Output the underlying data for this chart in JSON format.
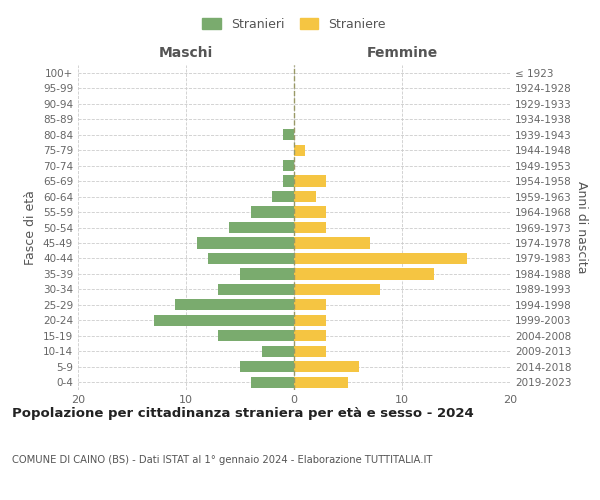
{
  "age_groups": [
    "0-4",
    "5-9",
    "10-14",
    "15-19",
    "20-24",
    "25-29",
    "30-34",
    "35-39",
    "40-44",
    "45-49",
    "50-54",
    "55-59",
    "60-64",
    "65-69",
    "70-74",
    "75-79",
    "80-84",
    "85-89",
    "90-94",
    "95-99",
    "100+"
  ],
  "birth_years": [
    "2019-2023",
    "2014-2018",
    "2009-2013",
    "2004-2008",
    "1999-2003",
    "1994-1998",
    "1989-1993",
    "1984-1988",
    "1979-1983",
    "1974-1978",
    "1969-1973",
    "1964-1968",
    "1959-1963",
    "1954-1958",
    "1949-1953",
    "1944-1948",
    "1939-1943",
    "1934-1938",
    "1929-1933",
    "1924-1928",
    "≤ 1923"
  ],
  "males": [
    4,
    5,
    3,
    7,
    13,
    11,
    7,
    5,
    8,
    9,
    6,
    4,
    2,
    1,
    1,
    0,
    1,
    0,
    0,
    0,
    0
  ],
  "females": [
    5,
    6,
    3,
    3,
    3,
    3,
    8,
    13,
    16,
    7,
    3,
    3,
    2,
    3,
    0,
    1,
    0,
    0,
    0,
    0,
    0
  ],
  "male_color": "#7aab6e",
  "female_color": "#f5c542",
  "male_label": "Stranieri",
  "female_label": "Straniere",
  "title": "Popolazione per cittadinanza straniera per età e sesso - 2024",
  "subtitle": "COMUNE DI CAINO (BS) - Dati ISTAT al 1° gennaio 2024 - Elaborazione TUTTITALIA.IT",
  "xlabel_left": "Maschi",
  "xlabel_right": "Femmine",
  "ylabel_left": "Fasce di età",
  "ylabel_right": "Anni di nascita",
  "xlim": 20,
  "background_color": "#ffffff",
  "grid_color": "#cccccc"
}
